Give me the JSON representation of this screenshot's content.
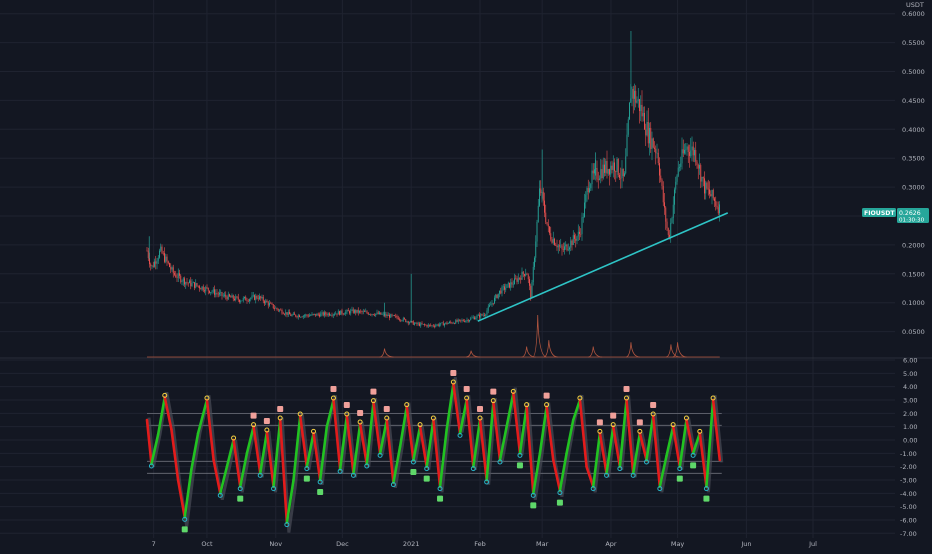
{
  "colors": {
    "background": "#131722",
    "grid": "#1f2330",
    "text": "#b2b5be",
    "candle_up": "#26a69a",
    "candle_down": "#ef5350",
    "trendline": "#2ec4c6",
    "volume": "#b0553f",
    "osc_up": "#21c321",
    "osc_down": "#e31b1b",
    "osc_shadow": "#4a4d57",
    "pivot_high": "#f5d142",
    "pivot_low": "#28b5c9",
    "label_sell": "#f0a09a",
    "label_buy": "#5fd86a",
    "ref_line": "#8a8d96",
    "price_tag": "#26a69a"
  },
  "price_axis": {
    "unit": "USDT",
    "ticks": [
      "0.6000",
      "0.5500",
      "0.5000",
      "0.4500",
      "0.4000",
      "0.3500",
      "0.3000",
      "0.2500",
      "0.2000",
      "0.1500",
      "0.1000",
      "0.0500"
    ]
  },
  "osc_axis": {
    "ticks": [
      "6.00",
      "5.00",
      "4.00",
      "3.00",
      "2.00",
      "1.00",
      "0.00",
      "-1.00",
      "-2.00",
      "-3.00",
      "-4.00",
      "-5.00",
      "-6.00",
      "-7.00"
    ]
  },
  "price_tag": {
    "symbol": "FIOUSDT",
    "price": "0.2626",
    "countdown": "01:30:30"
  },
  "time_axis": {
    "labels": [
      "7",
      "Oct",
      "Nov",
      "Dec",
      "2021",
      "Feb",
      "Mar",
      "Apr",
      "May",
      "Jun",
      "Jul"
    ]
  },
  "chart_data": [
    {
      "type": "candlestick",
      "title": "",
      "symbol": "FIOUSDT",
      "y_unit": "USDT",
      "ylim": [
        0.0,
        0.6
      ],
      "x_range": [
        "2020-09-04",
        "2021-07-05"
      ],
      "trendline": {
        "from": [
          "2021-01-31",
          0.068
        ],
        "to": [
          "2021-05-20",
          0.252
        ]
      },
      "close_anchors": [
        [
          "2020-09-04",
          0.19
        ],
        [
          "2020-09-06",
          0.16
        ],
        [
          "2020-09-10",
          0.19
        ],
        [
          "2020-09-16",
          0.15
        ],
        [
          "2020-09-22",
          0.135
        ],
        [
          "2020-09-30",
          0.125
        ],
        [
          "2020-10-08",
          0.112
        ],
        [
          "2020-10-16",
          0.105
        ],
        [
          "2020-10-24",
          0.11
        ],
        [
          "2020-11-01",
          0.09
        ],
        [
          "2020-11-08",
          0.078
        ],
        [
          "2020-11-16",
          0.078
        ],
        [
          "2020-11-28",
          0.082
        ],
        [
          "2020-12-06",
          0.085
        ],
        [
          "2020-12-18",
          0.08
        ],
        [
          "2020-12-26",
          0.074
        ],
        [
          "2021-01-03",
          0.063
        ],
        [
          "2021-01-10",
          0.06
        ],
        [
          "2021-01-18",
          0.065
        ],
        [
          "2021-01-26",
          0.07
        ],
        [
          "2021-02-03",
          0.08
        ],
        [
          "2021-02-10",
          0.12
        ],
        [
          "2021-02-16",
          0.135
        ],
        [
          "2021-02-22",
          0.155
        ],
        [
          "2021-02-24",
          0.11
        ],
        [
          "2021-02-28",
          0.3
        ],
        [
          "2021-03-04",
          0.22
        ],
        [
          "2021-03-10",
          0.19
        ],
        [
          "2021-03-18",
          0.22
        ],
        [
          "2021-03-22",
          0.31
        ],
        [
          "2021-03-28",
          0.33
        ],
        [
          "2021-04-03",
          0.34
        ],
        [
          "2021-04-07",
          0.31
        ],
        [
          "2021-04-10",
          0.47
        ],
        [
          "2021-04-14",
          0.44
        ],
        [
          "2021-04-18",
          0.39
        ],
        [
          "2021-04-22",
          0.36
        ],
        [
          "2021-04-25",
          0.26
        ],
        [
          "2021-04-27",
          0.21
        ],
        [
          "2021-05-01",
          0.33
        ],
        [
          "2021-05-05",
          0.37
        ],
        [
          "2021-05-09",
          0.36
        ],
        [
          "2021-05-13",
          0.3
        ],
        [
          "2021-05-17",
          0.28
        ],
        [
          "2021-05-20",
          0.2626
        ]
      ],
      "volume_spikes": [
        [
          "2020-12-20",
          0.2
        ],
        [
          "2021-01-28",
          0.15
        ],
        [
          "2021-02-22",
          0.25
        ],
        [
          "2021-02-27",
          1.0
        ],
        [
          "2021-03-04",
          0.4
        ],
        [
          "2021-03-24",
          0.25
        ],
        [
          "2021-04-10",
          0.35
        ],
        [
          "2021-04-28",
          0.3
        ],
        [
          "2021-05-01",
          0.35
        ]
      ]
    },
    {
      "type": "line",
      "title": "",
      "ylim": [
        -7,
        6
      ],
      "reference_lines": [
        2.0,
        1.1,
        -1.6,
        -2.5
      ],
      "oscillator_anchors": [
        [
          "2020-09-04",
          1.5
        ],
        [
          "2020-09-06",
          -1.8
        ],
        [
          "2020-09-09",
          0.4
        ],
        [
          "2020-09-12",
          3.2
        ],
        [
          "2020-09-15",
          0.8
        ],
        [
          "2020-09-18",
          -3.0
        ],
        [
          "2020-09-21",
          -5.8
        ],
        [
          "2020-09-24",
          -2.2
        ],
        [
          "2020-09-27",
          0.5
        ],
        [
          "2020-10-01",
          3.0
        ],
        [
          "2020-10-04",
          -1.5
        ],
        [
          "2020-10-07",
          -4.0
        ],
        [
          "2020-10-10",
          -2.0
        ],
        [
          "2020-10-13",
          0.0
        ],
        [
          "2020-10-16",
          -3.5
        ],
        [
          "2020-10-19",
          -1.0
        ],
        [
          "2020-10-22",
          1.0
        ],
        [
          "2020-10-25",
          -2.5
        ],
        [
          "2020-10-28",
          0.6
        ],
        [
          "2020-10-31",
          -3.5
        ],
        [
          "2020-11-03",
          1.5
        ],
        [
          "2020-11-06",
          -6.2
        ],
        [
          "2020-11-09",
          -3.0
        ],
        [
          "2020-11-12",
          1.8
        ],
        [
          "2020-11-15",
          -2.0
        ],
        [
          "2020-11-18",
          0.5
        ],
        [
          "2020-11-21",
          -3.0
        ],
        [
          "2020-11-24",
          1.0
        ],
        [
          "2020-11-27",
          3.0
        ],
        [
          "2020-11-30",
          -2.2
        ],
        [
          "2020-12-03",
          1.8
        ],
        [
          "2020-12-06",
          -2.5
        ],
        [
          "2020-12-09",
          1.2
        ],
        [
          "2020-12-12",
          -1.8
        ],
        [
          "2020-12-15",
          2.8
        ],
        [
          "2020-12-18",
          -1.0
        ],
        [
          "2020-12-21",
          1.5
        ],
        [
          "2020-12-24",
          -3.2
        ],
        [
          "2020-12-27",
          -0.5
        ],
        [
          "2020-12-30",
          2.5
        ],
        [
          "2021-01-02",
          -1.5
        ],
        [
          "2021-01-05",
          1.0
        ],
        [
          "2021-01-08",
          -2.0
        ],
        [
          "2021-01-11",
          1.5
        ],
        [
          "2021-01-14",
          -3.5
        ],
        [
          "2021-01-17",
          0.8
        ],
        [
          "2021-01-20",
          4.2
        ],
        [
          "2021-01-23",
          0.5
        ],
        [
          "2021-01-26",
          3.0
        ],
        [
          "2021-01-29",
          -2.0
        ],
        [
          "2021-02-01",
          1.5
        ],
        [
          "2021-02-04",
          -3.0
        ],
        [
          "2021-02-07",
          2.8
        ],
        [
          "2021-02-10",
          -1.5
        ],
        [
          "2021-02-13",
          1.0
        ],
        [
          "2021-02-16",
          3.5
        ],
        [
          "2021-02-19",
          -1.0
        ],
        [
          "2021-02-22",
          2.5
        ],
        [
          "2021-02-25",
          -4.0
        ],
        [
          "2021-02-28",
          -1.0
        ],
        [
          "2021-03-03",
          2.5
        ],
        [
          "2021-03-06",
          -1.5
        ],
        [
          "2021-03-09",
          -3.8
        ],
        [
          "2021-03-12",
          -1.0
        ],
        [
          "2021-03-15",
          1.5
        ],
        [
          "2021-03-18",
          3.0
        ],
        [
          "2021-03-21",
          -2.0
        ],
        [
          "2021-03-24",
          -3.5
        ],
        [
          "2021-03-27",
          0.5
        ],
        [
          "2021-03-30",
          -2.5
        ],
        [
          "2021-04-02",
          1.0
        ],
        [
          "2021-04-05",
          -2.0
        ],
        [
          "2021-04-08",
          3.0
        ],
        [
          "2021-04-11",
          -2.5
        ],
        [
          "2021-04-14",
          0.5
        ],
        [
          "2021-04-17",
          -1.5
        ],
        [
          "2021-04-20",
          1.8
        ],
        [
          "2021-04-23",
          -3.5
        ],
        [
          "2021-04-26",
          -1.2
        ],
        [
          "2021-04-29",
          1.0
        ],
        [
          "2021-05-02",
          -2.0
        ],
        [
          "2021-05-05",
          1.5
        ],
        [
          "2021-05-08",
          -1.0
        ],
        [
          "2021-05-11",
          0.5
        ],
        [
          "2021-05-14",
          -3.5
        ],
        [
          "2021-05-17",
          3.0
        ],
        [
          "2021-05-20",
          -1.5
        ]
      ]
    }
  ]
}
